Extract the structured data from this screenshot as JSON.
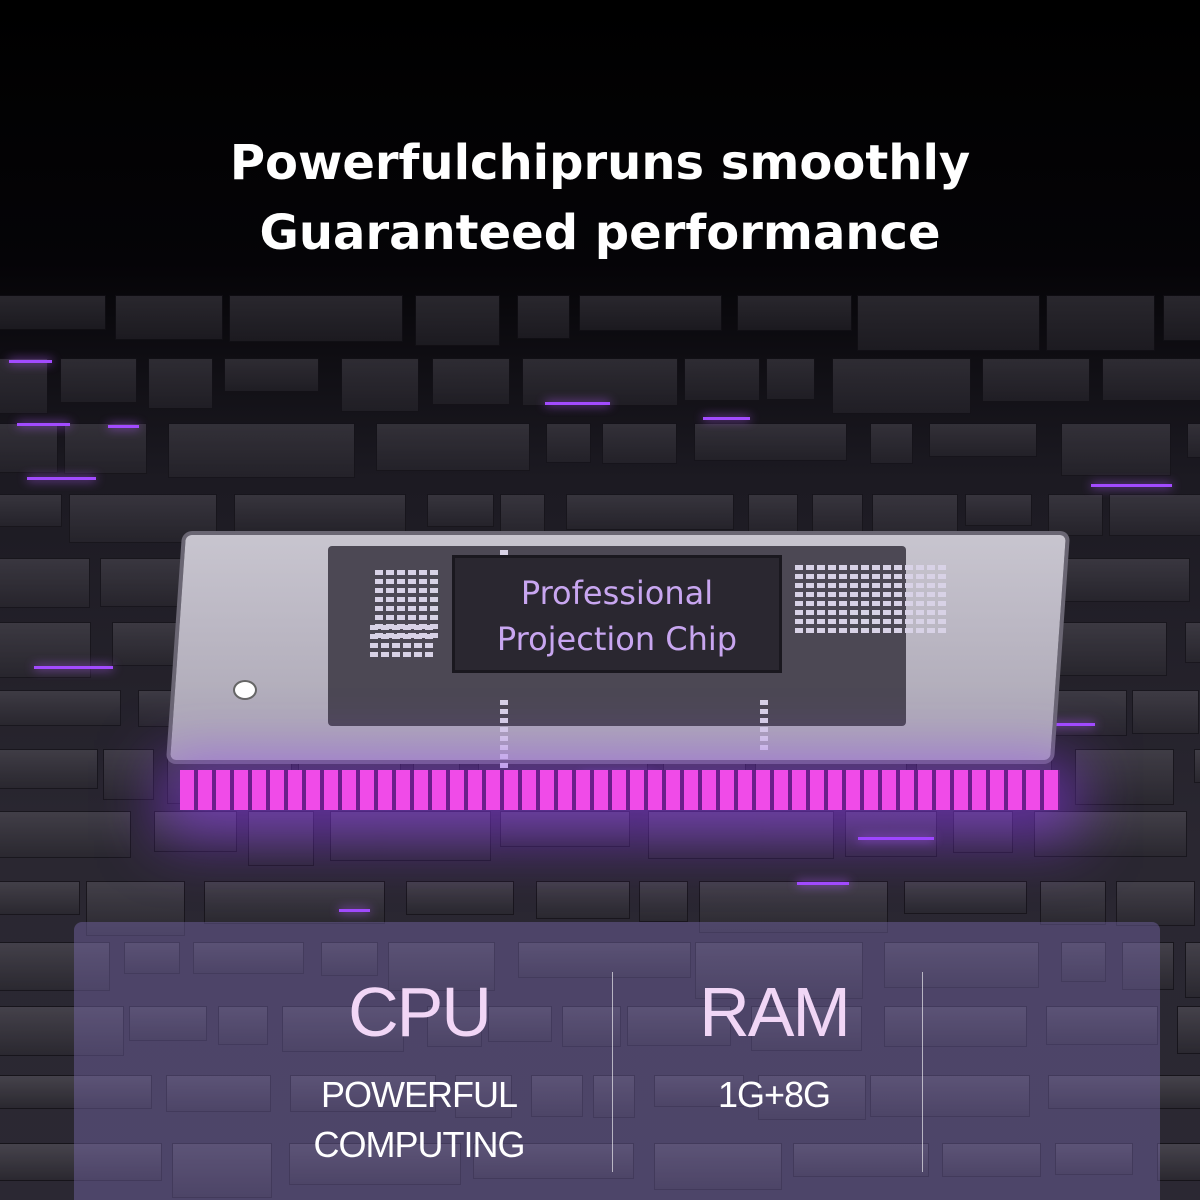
{
  "headline": {
    "line1": "Powerfulchipruns smoothly",
    "line2": "Guaranteed performance"
  },
  "chip": {
    "line1": "Professional",
    "line2": "Projection Chip"
  },
  "specs": [
    {
      "title": "CPU",
      "line1": "POWERFUL",
      "line2": "COMPUTING"
    },
    {
      "title": "RAM",
      "line1": "1G+8G",
      "line2": ""
    }
  ],
  "colors": {
    "accent": "#a24bff",
    "glow": "#f04be8",
    "title": "#f1d6f6"
  }
}
